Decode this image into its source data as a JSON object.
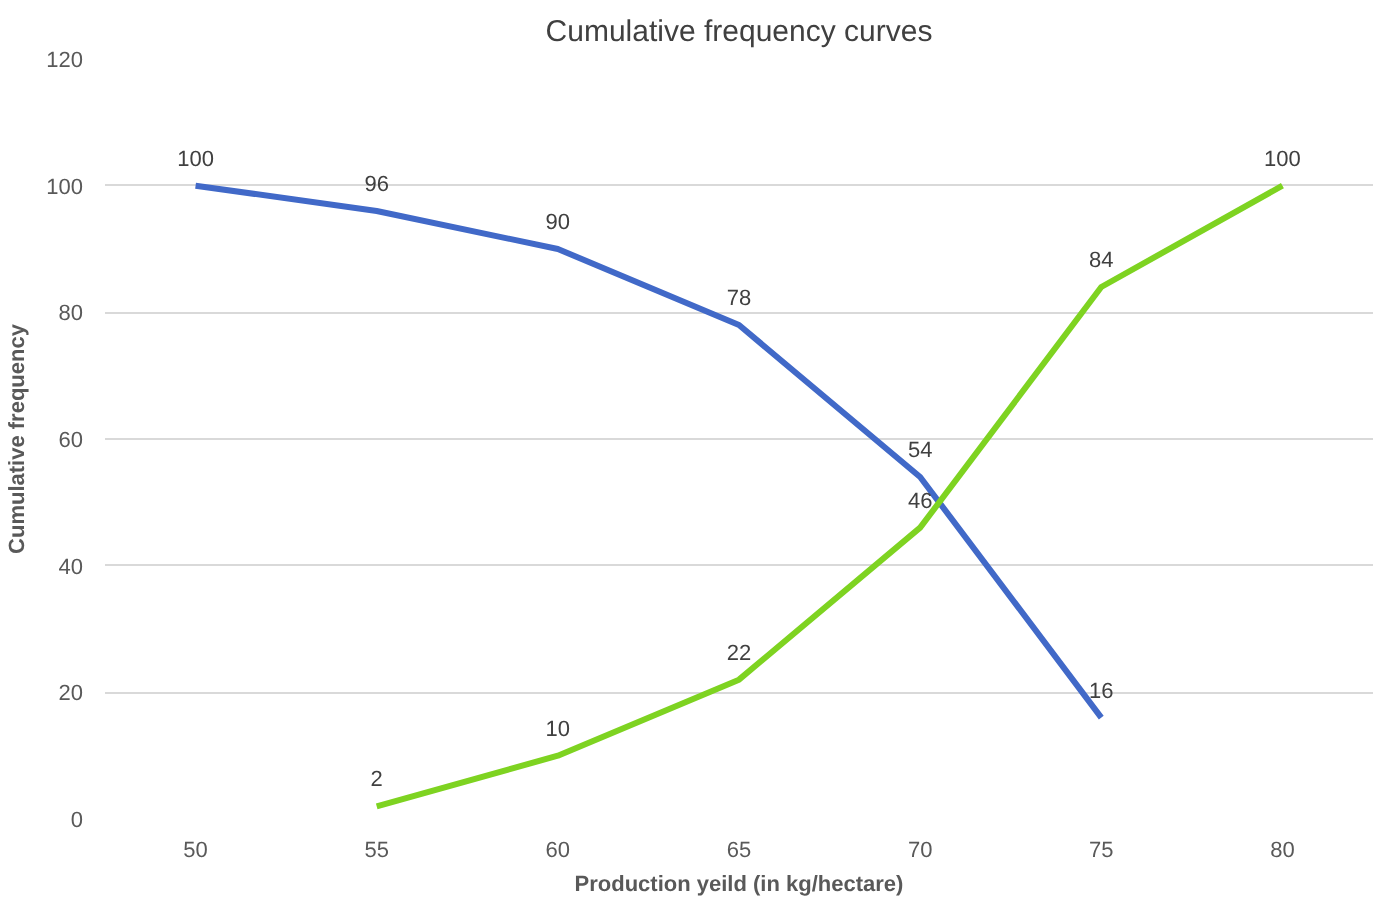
{
  "chart_data": {
    "type": "line",
    "title": "Cumulative frequency curves",
    "xlabel": "Production yeild (in kg/hectare)",
    "ylabel": "Cumulative frequency",
    "categories": [
      "50",
      "55",
      "60",
      "65",
      "70",
      "75",
      "80"
    ],
    "series": [
      {
        "color": "#4169c8",
        "values": [
          100,
          96,
          90,
          78,
          54,
          16,
          null
        ]
      },
      {
        "color": "#7ed321",
        "values": [
          null,
          2,
          10,
          22,
          46,
          84,
          100
        ]
      }
    ],
    "ylim": [
      0,
      120
    ],
    "yticks": [
      0,
      20,
      40,
      60,
      80,
      100,
      120
    ],
    "grid": "y",
    "data_labels": true,
    "marker": "none",
    "line_style": "solid"
  }
}
